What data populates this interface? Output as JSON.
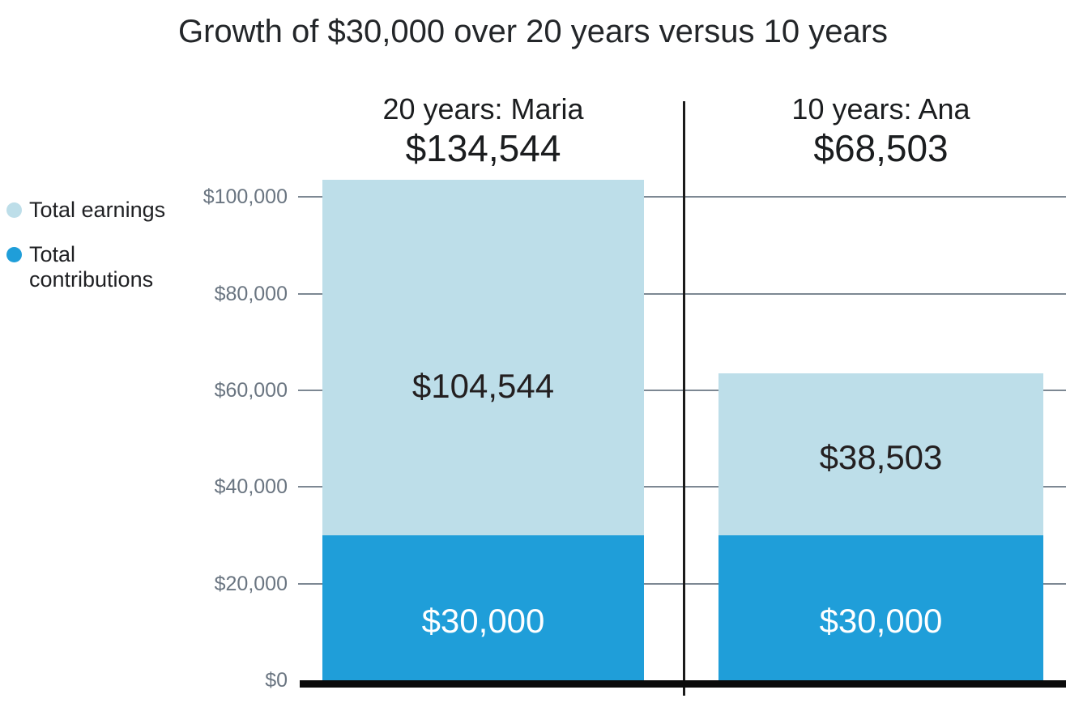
{
  "title": "Growth of $30,000 over 20 years versus 10 years",
  "legend": {
    "position": "left",
    "items": [
      {
        "label": "Total earnings",
        "color": "#bddee9"
      },
      {
        "label": "Total contributions",
        "color": "#1f9ed9"
      }
    ]
  },
  "colors": {
    "background": "#ffffff",
    "title_text": "#232629",
    "header_text": "#1b1d1f",
    "axis_label_text": "#6a7581",
    "gridline": "#7d8893",
    "baseline": "#0b0b0b",
    "divider": "#1b1b1b",
    "earnings_fill": "#bddee9",
    "contributions_fill": "#1f9ed9",
    "label_on_light": "#231f20",
    "label_on_dark": "#ffffff"
  },
  "chart_data": {
    "type": "bar",
    "stacked": true,
    "title": "Growth of $30,000 over 20 years versus 10 years",
    "categories": [
      "20 years: Maria",
      "10 years: Ana"
    ],
    "series": [
      {
        "name": "Total contributions",
        "color": "#1f9ed9",
        "values": [
          30000,
          30000
        ],
        "value_labels": [
          "$30,000",
          "$30,000"
        ],
        "label_color": "#ffffff"
      },
      {
        "name": "Total earnings",
        "color": "#bddee9",
        "values": [
          104544,
          38503
        ],
        "value_labels": [
          "$104,544",
          "$38,503"
        ],
        "label_color": "#231f20"
      }
    ],
    "totals": [
      134544,
      68503
    ],
    "total_labels": [
      "$134,544",
      "$68,503"
    ],
    "yticks": [
      0,
      20000,
      40000,
      60000,
      80000,
      100000
    ],
    "ytick_labels": [
      "$0",
      "$20,000",
      "$40,000",
      "$60,000",
      "$80,000",
      "$100,000"
    ],
    "ylim": [
      0,
      105000
    ],
    "xlabel": "",
    "ylabel": "",
    "grid": "horizontal",
    "legend_position": "left"
  }
}
